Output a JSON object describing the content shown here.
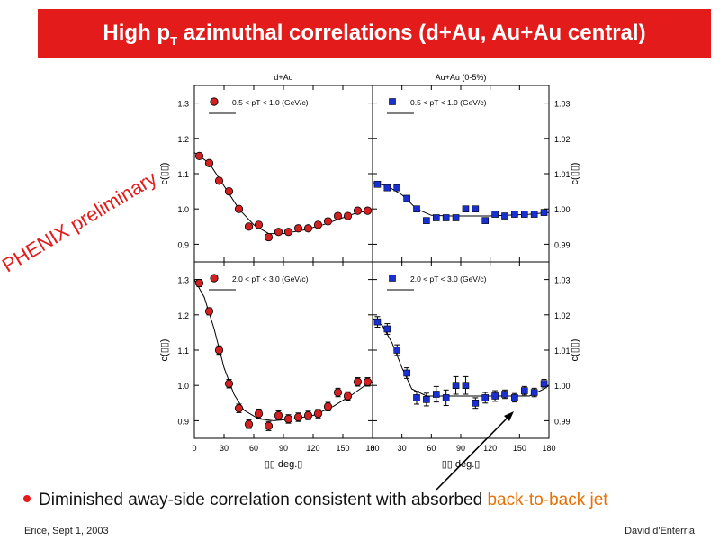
{
  "slide": {
    "title_main": "High p",
    "title_sub": "T",
    "title_rest": " azimuthal correlations (d+Au, Au+Au central)",
    "watermark": "PHENIX preliminary",
    "bullet_prefix": "Diminished away-side correlation consistent with absorbed ",
    "bullet_highlight": "back-to-back jet",
    "footer_left": "Erice, Sept 1, 2003",
    "footer_right": "David d'Enterria",
    "colors": {
      "banner": "#e31b1b",
      "highlight": "#e86f00",
      "dAu_marker": "#d42020",
      "AuAu_marker": "#1a2fd0"
    }
  },
  "chart_data": {
    "type": "scatter",
    "xlabel": "deg.",
    "ylabel": "c(",
    "x_ticks": [
      "0",
      "30",
      "60",
      "90",
      "120",
      "150",
      "180"
    ],
    "xlim": [
      0,
      180
    ],
    "columns": [
      "d+Au",
      "Au+Au (0-5%)"
    ],
    "panels": [
      {
        "title": "d+Au",
        "label": "0.5 < pT < 1.0 (GeV/c)",
        "marker": "circle",
        "color": "#d42020",
        "ylim": [
          0.85,
          1.35
        ],
        "y_ticks": [
          "0.9",
          "1.0",
          "1.1",
          "1.2",
          "1.3"
        ],
        "y_side": "left",
        "x": [
          5,
          15,
          25,
          35,
          45,
          55,
          65,
          75,
          85,
          95,
          105,
          115,
          125,
          135,
          145,
          155,
          165,
          175
        ],
        "y": [
          1.15,
          1.13,
          1.08,
          1.05,
          1.0,
          0.95,
          0.955,
          0.92,
          0.935,
          0.935,
          0.945,
          0.945,
          0.955,
          0.965,
          0.98,
          0.98,
          0.995,
          0.995
        ],
        "err": [
          0.008,
          0.008,
          0.008,
          0.008,
          0.008,
          0.008,
          0.008,
          0.008,
          0.008,
          0.008,
          0.008,
          0.008,
          0.008,
          0.008,
          0.008,
          0.008,
          0.008,
          0.008
        ],
        "fit": [
          [
            0,
            1.16
          ],
          [
            15,
            1.13
          ],
          [
            30,
            1.065
          ],
          [
            45,
            1.0
          ],
          [
            60,
            0.955
          ],
          [
            75,
            0.93
          ],
          [
            90,
            0.93
          ],
          [
            110,
            0.94
          ],
          [
            130,
            0.955
          ],
          [
            150,
            0.975
          ],
          [
            165,
            0.99
          ],
          [
            180,
            0.995
          ]
        ]
      },
      {
        "title": "Au+Au (0-5%)",
        "label": "0.5 < pT < 1.0 (GeV/c)",
        "marker": "square",
        "color": "#1a2fd0",
        "ylim": [
          0.985,
          1.035
        ],
        "y_ticks": [
          "0.99",
          "1.00",
          "1.01",
          "1.02",
          "1.03"
        ],
        "y_side": "right",
        "x": [
          5,
          15,
          25,
          35,
          45,
          55,
          65,
          75,
          85,
          95,
          105,
          115,
          125,
          135,
          145,
          155,
          165,
          175
        ],
        "y": [
          1.007,
          1.006,
          1.006,
          1.003,
          1.0,
          0.9967,
          0.9975,
          0.9975,
          0.9975,
          1.0,
          1.0,
          0.9967,
          0.9985,
          0.998,
          0.9985,
          0.9985,
          0.9985,
          0.999
        ],
        "err": [
          0.0004,
          0.0004,
          0.0004,
          0.0004,
          0.0004,
          0.0004,
          0.0004,
          0.0004,
          0.0004,
          0.0004,
          0.0004,
          0.0004,
          0.0004,
          0.0004,
          0.0004,
          0.0004,
          0.0004,
          0.0004
        ],
        "fit": [
          [
            0,
            1.0075
          ],
          [
            15,
            1.0065
          ],
          [
            30,
            1.004
          ],
          [
            45,
            1.0
          ],
          [
            60,
            0.9982
          ],
          [
            80,
            0.998
          ],
          [
            120,
            0.998
          ],
          [
            160,
            0.9985
          ],
          [
            180,
            0.999
          ]
        ]
      },
      {
        "title": "",
        "label": "2.0 < pT < 3.0 (GeV/c)",
        "marker": "circle",
        "color": "#d42020",
        "ylim": [
          0.85,
          1.35
        ],
        "y_ticks": [
          "0.9",
          "1.0",
          "1.1",
          "1.2",
          "1.3"
        ],
        "y_side": "left",
        "x": [
          5,
          15,
          25,
          35,
          45,
          55,
          65,
          75,
          85,
          95,
          105,
          115,
          125,
          135,
          145,
          155,
          165,
          175
        ],
        "y": [
          1.29,
          1.21,
          1.1,
          1.005,
          0.935,
          0.89,
          0.92,
          0.885,
          0.915,
          0.905,
          0.91,
          0.915,
          0.92,
          0.94,
          0.98,
          0.97,
          1.01,
          1.01
        ],
        "err": [
          0.01,
          0.01,
          0.012,
          0.012,
          0.012,
          0.012,
          0.013,
          0.013,
          0.013,
          0.012,
          0.012,
          0.012,
          0.012,
          0.012,
          0.012,
          0.012,
          0.012,
          0.012
        ],
        "fit": [
          [
            0,
            1.3
          ],
          [
            10,
            1.25
          ],
          [
            20,
            1.16
          ],
          [
            30,
            1.05
          ],
          [
            40,
            0.975
          ],
          [
            50,
            0.93
          ],
          [
            65,
            0.905
          ],
          [
            80,
            0.9
          ],
          [
            100,
            0.905
          ],
          [
            120,
            0.915
          ],
          [
            140,
            0.94
          ],
          [
            160,
            0.975
          ],
          [
            175,
            1.005
          ],
          [
            180,
            1.01
          ]
        ]
      },
      {
        "title": "",
        "label": "2.0 < pT < 3.0 (GeV/c)",
        "marker": "square",
        "color": "#1a2fd0",
        "ylim": [
          0.985,
          1.035
        ],
        "y_ticks": [
          "0.99",
          "1.00",
          "1.01",
          "1.02",
          "1.03"
        ],
        "y_side": "right",
        "x": [
          5,
          15,
          25,
          35,
          45,
          55,
          65,
          75,
          85,
          95,
          105,
          115,
          125,
          135,
          145,
          155,
          165,
          175
        ],
        "y": [
          1.018,
          1.016,
          1.01,
          1.0035,
          0.9965,
          0.996,
          0.9975,
          0.9965,
          1.0,
          1.0,
          0.995,
          0.9965,
          0.997,
          0.9975,
          0.9965,
          0.9985,
          0.998,
          1.0005
        ],
        "err": [
          0.0015,
          0.0015,
          0.0015,
          0.0015,
          0.0018,
          0.0018,
          0.0022,
          0.0022,
          0.0025,
          0.0025,
          0.0015,
          0.0015,
          0.0015,
          0.0012,
          0.0012,
          0.0012,
          0.0012,
          0.0012
        ],
        "fit": [
          [
            0,
            1.019
          ],
          [
            10,
            1.017
          ],
          [
            20,
            1.012
          ],
          [
            30,
            1.005
          ],
          [
            40,
            0.999
          ],
          [
            55,
            0.997
          ],
          [
            80,
            0.997
          ],
          [
            120,
            0.997
          ],
          [
            160,
            0.997
          ],
          [
            175,
            0.999
          ],
          [
            180,
            1.0
          ]
        ]
      }
    ]
  }
}
